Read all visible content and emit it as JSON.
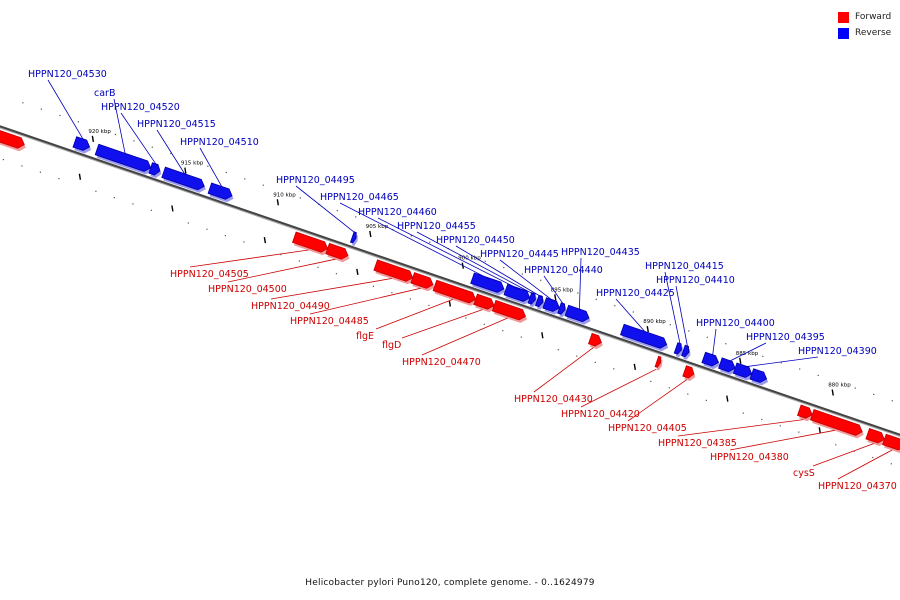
{
  "legend": {
    "forward_label": "Forward",
    "reverse_label": "Reverse",
    "forward_color": "#ff0000",
    "reverse_color": "#0000ff"
  },
  "caption": "Helicobacter pylori Puno120, complete genome. - 0..1624979",
  "colors": {
    "forward": "#ff0000",
    "forward_dark": "#c40000",
    "forward_shadow": "#f29a9a",
    "reverse": "#1010ee",
    "reverse_dark": "#0000a0",
    "reverse_shadow": "#9a9af2",
    "backbone": "#444444",
    "forward_label": "#cc0000",
    "reverse_label": "#0000bb"
  },
  "scale": {
    "kbp_min": 875,
    "kbp_max": 925,
    "major_ticks": [
      {
        "kbp": 920,
        "label": "920 kbp"
      },
      {
        "kbp": 915,
        "label": "915 kbp"
      },
      {
        "kbp": 910,
        "label": "910 kbp"
      },
      {
        "kbp": 905,
        "label": "905 kbp"
      },
      {
        "kbp": 900,
        "label": "900 kbp"
      },
      {
        "kbp": 895,
        "label": "895 kbp"
      },
      {
        "kbp": 890,
        "label": "890 kbp"
      },
      {
        "kbp": 885,
        "label": "885 kbp"
      },
      {
        "kbp": 880,
        "label": "880 kbp"
      }
    ]
  },
  "genes": [
    {
      "name": "",
      "strand": "forward",
      "start_kbp": 924.9,
      "end_kbp": 923.2
    },
    {
      "name": "HPPN120_04530",
      "strand": "reverse",
      "start_kbp": 920.8,
      "end_kbp": 920.0
    },
    {
      "name": "carB",
      "strand": "reverse",
      "start_kbp": 919.6,
      "end_kbp": 916.7
    },
    {
      "name": "HPPN120_04520",
      "strand": "reverse",
      "start_kbp": 916.7,
      "end_kbp": 916.2
    },
    {
      "name": "HPPN120_04515",
      "strand": "reverse",
      "start_kbp": 916.0,
      "end_kbp": 913.8
    },
    {
      "name": "HPPN120_04510",
      "strand": "reverse",
      "start_kbp": 913.5,
      "end_kbp": 912.3
    },
    {
      "name": "HPPN120_04505",
      "strand": "forward",
      "start_kbp": 908.6,
      "end_kbp": 906.8
    },
    {
      "name": "HPPN120_04500",
      "strand": "forward",
      "start_kbp": 906.8,
      "end_kbp": 905.7
    },
    {
      "name": "HPPN120_04495",
      "strand": "reverse",
      "start_kbp": 905.8,
      "end_kbp": 905.6
    },
    {
      "name": "HPPN120_04490",
      "strand": "forward",
      "start_kbp": 904.2,
      "end_kbp": 902.2
    },
    {
      "name": "HPPN120_04485",
      "strand": "forward",
      "start_kbp": 902.2,
      "end_kbp": 901.1
    },
    {
      "name": "flgE",
      "strand": "forward",
      "start_kbp": 901.0,
      "end_kbp": 898.8
    },
    {
      "name": "flgD",
      "strand": "forward",
      "start_kbp": 898.8,
      "end_kbp": 897.8
    },
    {
      "name": "HPPN120_04470",
      "strand": "forward",
      "start_kbp": 897.8,
      "end_kbp": 896.1
    },
    {
      "name": "HPPN120_04465",
      "strand": "reverse",
      "start_kbp": 899.3,
      "end_kbp": 897.6
    },
    {
      "name": "HPPN120_04460",
      "strand": "reverse",
      "start_kbp": 897.5,
      "end_kbp": 896.2
    },
    {
      "name": "HPPN120_04455",
      "strand": "reverse",
      "start_kbp": 896.2,
      "end_kbp": 895.9
    },
    {
      "name": "HPPN120_04450",
      "strand": "reverse",
      "start_kbp": 895.8,
      "end_kbp": 895.5
    },
    {
      "name": "HPPN120_04445",
      "strand": "reverse",
      "start_kbp": 895.4,
      "end_kbp": 894.6
    },
    {
      "name": "HPPN120_04440",
      "strand": "reverse",
      "start_kbp": 894.6,
      "end_kbp": 894.3
    },
    {
      "name": "HPPN120_04435",
      "strand": "reverse",
      "start_kbp": 894.2,
      "end_kbp": 893.0
    },
    {
      "name": "HPPN120_04430",
      "strand": "forward",
      "start_kbp": 892.6,
      "end_kbp": 892.0
    },
    {
      "name": "HPPN120_04425",
      "strand": "reverse",
      "start_kbp": 891.2,
      "end_kbp": 888.8
    },
    {
      "name": "HPPN120_04420",
      "strand": "forward",
      "start_kbp": 889.0,
      "end_kbp": 888.8
    },
    {
      "name": "HPPN120_04415",
      "strand": "reverse",
      "start_kbp": 888.3,
      "end_kbp": 888.0
    },
    {
      "name": "HPPN120_04410",
      "strand": "reverse",
      "start_kbp": 887.9,
      "end_kbp": 887.6
    },
    {
      "name": "HPPN120_04405",
      "strand": "forward",
      "start_kbp": 887.5,
      "end_kbp": 887.0
    },
    {
      "name": "HPPN120_04400",
      "strand": "reverse",
      "start_kbp": 886.8,
      "end_kbp": 886.0
    },
    {
      "name": "HPPN120_04395",
      "strand": "reverse",
      "start_kbp": 885.9,
      "end_kbp": 885.1
    },
    {
      "name": "HPPN120_04390",
      "strand": "reverse",
      "start_kbp": 885.1,
      "end_kbp": 884.2
    },
    {
      "name": "",
      "strand": "reverse",
      "start_kbp": 884.2,
      "end_kbp": 883.4
    },
    {
      "name": "HPPN120_04385",
      "strand": "forward",
      "start_kbp": 881.3,
      "end_kbp": 880.6
    },
    {
      "name": "HPPN120_04380",
      "strand": "forward",
      "start_kbp": 880.6,
      "end_kbp": 877.9
    },
    {
      "name": "cysS",
      "strand": "forward",
      "start_kbp": 877.6,
      "end_kbp": 876.7
    },
    {
      "name": "HPPN120_04370",
      "strand": "forward",
      "start_kbp": 876.7,
      "end_kbp": 875.6
    }
  ]
}
